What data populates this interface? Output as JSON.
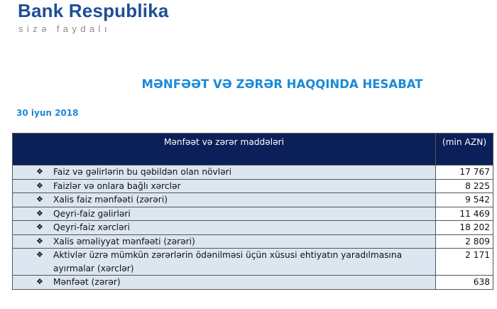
{
  "brand": {
    "name": "Bank Respublika",
    "tagline": "sizə faydalı",
    "color": "#1f4e96"
  },
  "title": "MƏNFƏƏT VƏ ZƏRƏR HAQQINDA HESABAT",
  "date": "30 iyun 2018",
  "table": {
    "headers": [
      "Mənfəət və zərər maddələri",
      "(min AZN)"
    ],
    "header_color": "#0b2059",
    "bullet": "❖",
    "rows": [
      {
        "label": "Faiz və gəlirlərin bu qəbildən olan növləri",
        "value": "17 767"
      },
      {
        "label": "Faizlər və onlara bağlı xərclər",
        "value": "8 225"
      },
      {
        "label": "Xalis faiz mənfəəti (zərəri)",
        "value": "9 542"
      },
      {
        "label": "Qeyri-faiz gəlirləri",
        "value": "11 469"
      },
      {
        "label": "Qeyri-faiz xərcləri",
        "value": "18 202"
      },
      {
        "label": "Xalis əməliyyat mənfəəti (zərəri)",
        "value": "2 809"
      },
      {
        "label": "Aktivlər üzrə mümkün zərərlərin ödənilməsi üçün xüsusi ehtiyatın yaradılmasına ayırmalar (xərclər)",
        "value": "2 171"
      },
      {
        "label": "Mənfəət (zərər)",
        "value": "638"
      }
    ]
  }
}
